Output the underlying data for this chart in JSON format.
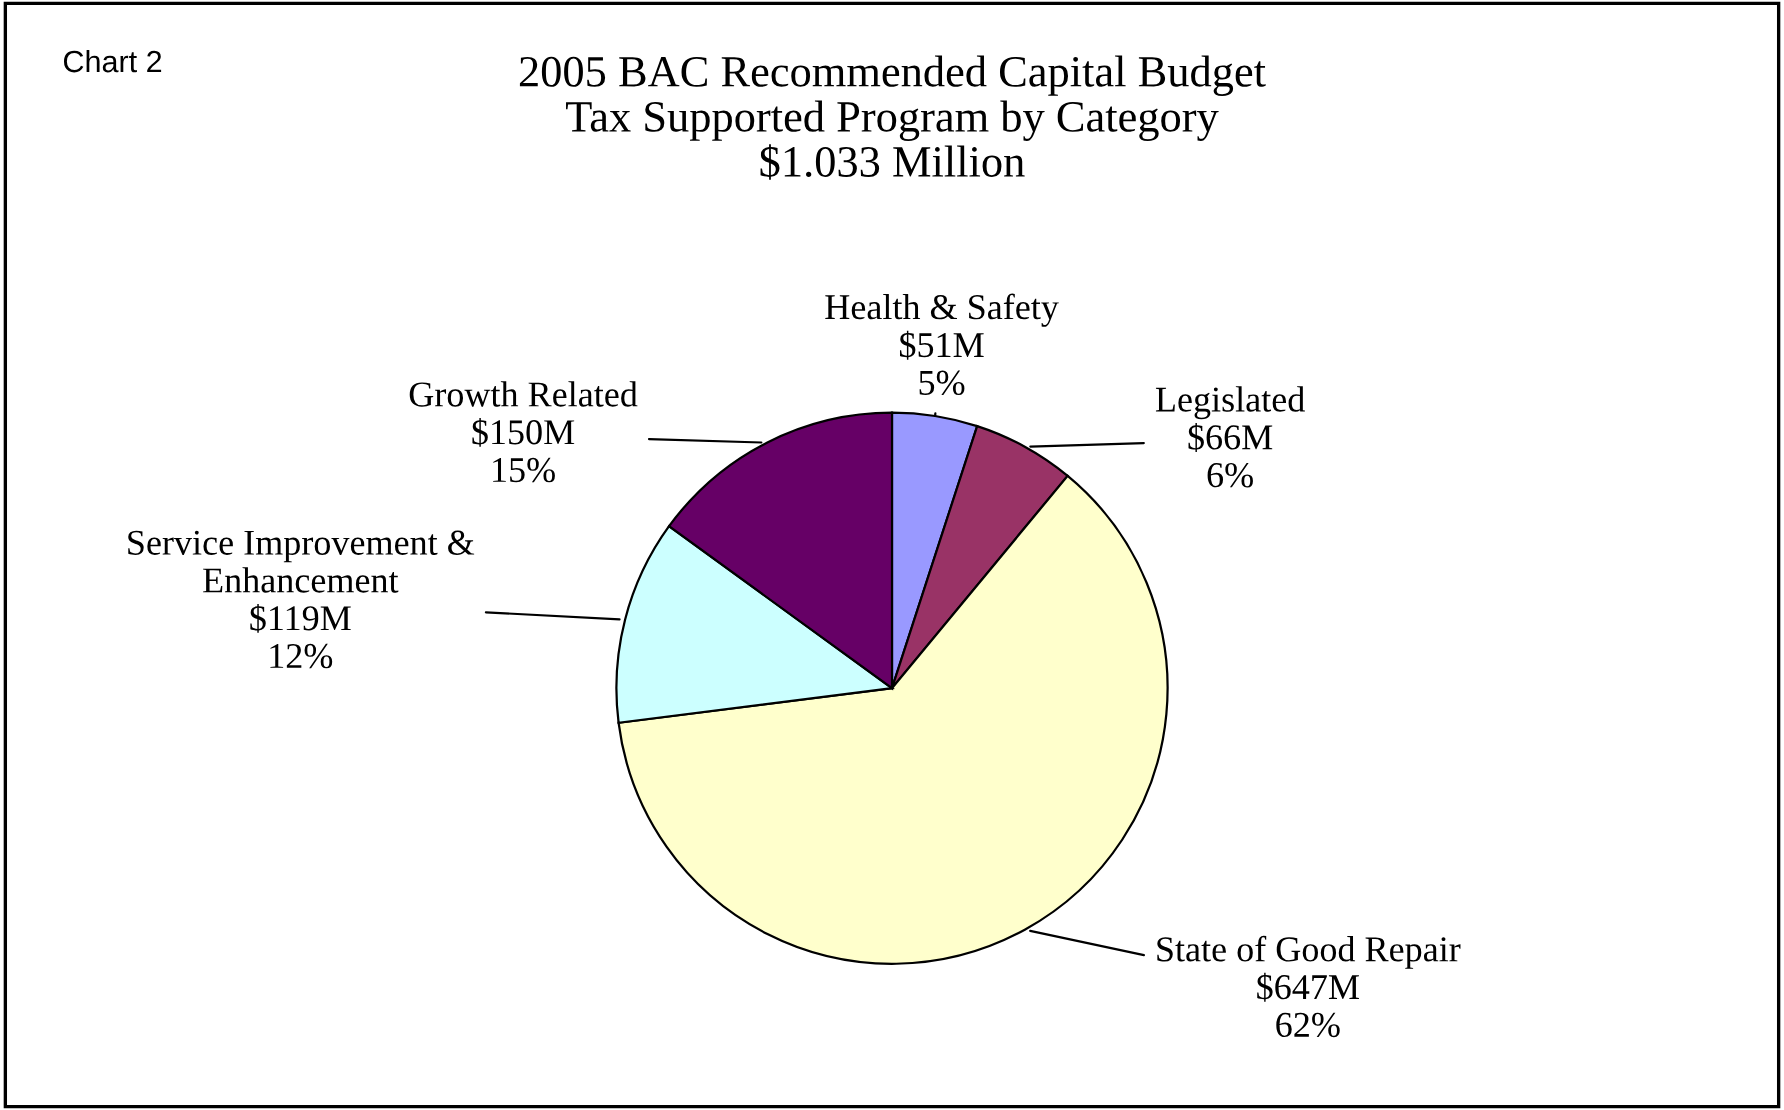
{
  "chart_data": {
    "type": "pie",
    "title": "2005 BAC Recommended Capital Budget\nTax Supported Program by Category\n$1.033 Million",
    "categories": [
      "Health & Safety",
      "Legislated",
      "State of Good Repair",
      "Service Improvement & Enhancement",
      "Growth Related"
    ],
    "values": [
      5,
      6,
      62,
      12,
      15
    ],
    "value_labels": [
      "$51M\n5%",
      "$66M\n6%",
      "$647M\n62%",
      "$119M\n12%",
      "$150M\n15%"
    ],
    "colors": [
      "#9999ff",
      "#993366",
      "#ffffcc",
      "#ccffff",
      "#660066"
    ],
    "annotations": [
      "Chart 2"
    ],
    "legend": false
  }
}
